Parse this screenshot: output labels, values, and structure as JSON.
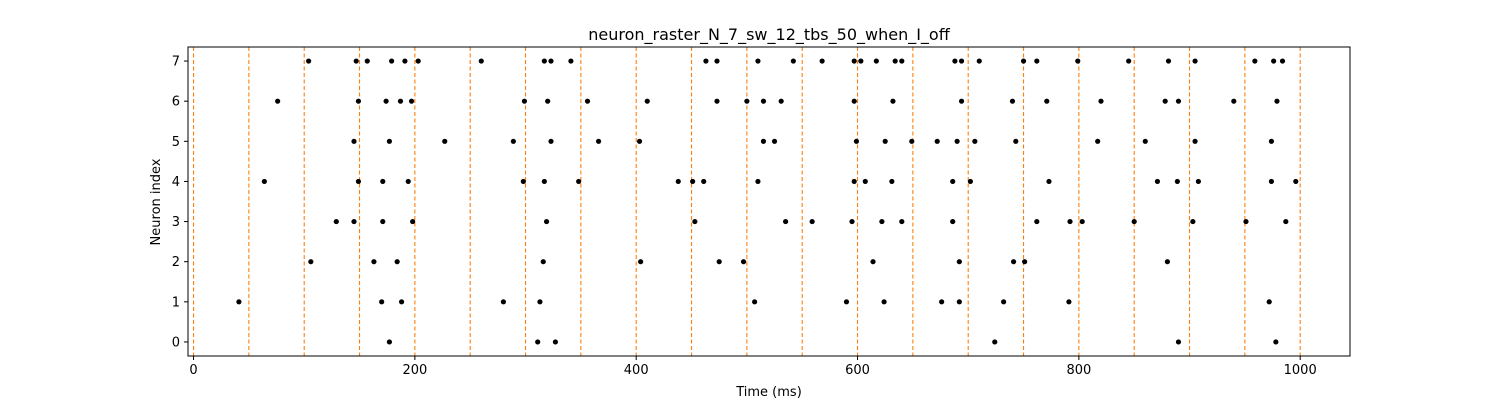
{
  "chart_data": {
    "type": "scatter",
    "title": "neuron_raster_N_7_sw_12_tbs_50_when_I_off",
    "xlabel": "Time (ms)",
    "ylabel": "Neuron index",
    "xlim": [
      -5,
      1045
    ],
    "ylim": [
      -0.35,
      7.35
    ],
    "xticks": [
      0,
      200,
      400,
      600,
      800,
      1000
    ],
    "yticks": [
      0,
      1,
      2,
      3,
      4,
      5,
      6,
      7
    ],
    "grid": false,
    "legend": "none",
    "marker_color": "#000000",
    "vline_color": "#ff7f0e",
    "vlines_x": [
      0,
      50,
      100,
      150,
      200,
      250,
      300,
      350,
      400,
      450,
      500,
      550,
      600,
      650,
      700,
      750,
      800,
      850,
      900,
      950,
      1000
    ],
    "series": [
      {
        "neuron": 0,
        "x": [
          177,
          311,
          327,
          724,
          890,
          978
        ]
      },
      {
        "neuron": 1,
        "x": [
          41,
          170,
          188,
          280,
          313,
          507,
          590,
          624,
          676,
          692,
          732,
          791,
          972
        ]
      },
      {
        "neuron": 2,
        "x": [
          106,
          163,
          184,
          316,
          404,
          475,
          497,
          614,
          692,
          741,
          751,
          880
        ]
      },
      {
        "neuron": 3,
        "x": [
          129,
          145,
          171,
          198,
          319,
          453,
          535,
          559,
          595,
          622,
          640,
          686,
          762,
          792,
          803,
          850,
          903,
          951,
          987
        ]
      },
      {
        "neuron": 4,
        "x": [
          64,
          149,
          171,
          194,
          298,
          317,
          348,
          438,
          451,
          461,
          510,
          597,
          607,
          631,
          686,
          702,
          773,
          871,
          889,
          908,
          974,
          996
        ]
      },
      {
        "neuron": 5,
        "x": [
          145,
          177,
          227,
          289,
          323,
          366,
          403,
          515,
          525,
          599,
          625,
          649,
          672,
          690,
          706,
          743,
          817,
          860,
          905,
          974
        ]
      },
      {
        "neuron": 6,
        "x": [
          76,
          149,
          174,
          187,
          197,
          299,
          320,
          356,
          410,
          473,
          500,
          515,
          531,
          597,
          632,
          694,
          740,
          771,
          820,
          878,
          890,
          940,
          979
        ]
      },
      {
        "neuron": 7,
        "x": [
          104,
          147,
          157,
          179,
          191,
          203,
          260,
          317,
          323,
          341,
          463,
          473,
          510,
          542,
          568,
          597,
          603,
          617,
          634,
          640,
          688,
          694,
          710,
          750,
          762,
          799,
          845,
          881,
          905,
          959,
          976,
          984
        ]
      }
    ]
  }
}
